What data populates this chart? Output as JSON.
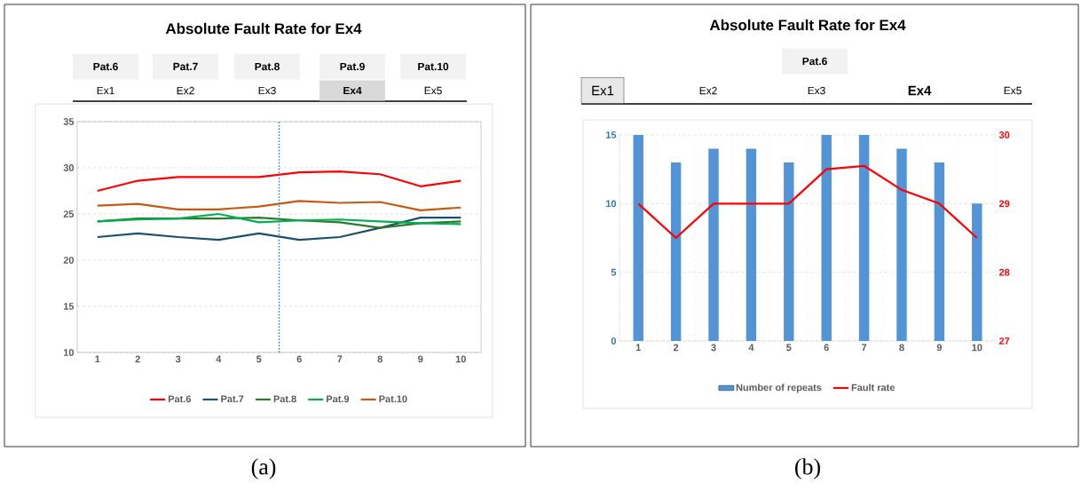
{
  "chart_data": [
    {
      "type": "line",
      "title": "Absolute Fault Rate for Ex4",
      "x": [
        1,
        2,
        3,
        4,
        5,
        6,
        7,
        8,
        9,
        10
      ],
      "xlim": [
        0.5,
        10.5
      ],
      "xticks": [
        1,
        2,
        3,
        4,
        5,
        6,
        7,
        8,
        9,
        10
      ],
      "ylim": [
        10,
        35
      ],
      "yticks": [
        10,
        15,
        20,
        25,
        30,
        35
      ],
      "series": [
        {
          "name": "Pat.6",
          "color": "#ff0000",
          "values": [
            27.5,
            28.6,
            29.0,
            29.0,
            29.0,
            29.5,
            29.6,
            29.3,
            28.0,
            28.6
          ]
        },
        {
          "name": "Pat.7",
          "color": "#1f4e6e",
          "values": [
            22.5,
            22.9,
            22.5,
            22.2,
            22.9,
            22.2,
            22.5,
            23.5,
            24.6,
            24.6
          ]
        },
        {
          "name": "Pat.8",
          "color": "#2a7a2a",
          "values": [
            24.2,
            24.5,
            24.5,
            24.5,
            24.6,
            24.3,
            24.1,
            23.5,
            24.0,
            24.2
          ]
        },
        {
          "name": "Pat.9",
          "color": "#00b050",
          "values": [
            24.2,
            24.4,
            24.5,
            25.0,
            24.1,
            24.3,
            24.4,
            24.2,
            24.0,
            23.9
          ]
        },
        {
          "name": "Pat.10",
          "color": "#c55a11",
          "values": [
            25.9,
            26.1,
            25.5,
            25.5,
            25.8,
            26.4,
            26.2,
            26.3,
            25.4,
            25.7
          ]
        }
      ],
      "ref_lines": [
        {
          "axis": "x",
          "value": 5.5,
          "color": "#2e75b6",
          "line_style": "dotted"
        }
      ],
      "grid": "y",
      "legend": "bottom",
      "marker": "none",
      "line_style": "solid",
      "annotations": [
        "Pat.6",
        "Pat.7",
        "Pat.8",
        "Pat.9",
        "Pat.10",
        "Ex1",
        "Ex2",
        "Ex3",
        "Ex4",
        "Ex5",
        "(a)"
      ]
    },
    {
      "type": "bar",
      "title": "Absolute Fault Rate for Ex4",
      "categories": [
        "1",
        "2",
        "3",
        "4",
        "5",
        "6",
        "7",
        "8",
        "9",
        "10"
      ],
      "ylim": [
        0,
        15
      ],
      "yticks": [
        0,
        5,
        10,
        15
      ],
      "y2lim": [
        27,
        30
      ],
      "y2ticks": [
        27,
        28,
        29,
        30
      ],
      "series": [
        {
          "name": "Number of repeats",
          "color": "#5294d6",
          "values": [
            15,
            13,
            14,
            14,
            13,
            15,
            15,
            14,
            13,
            10
          ]
        },
        {
          "name": "Fault rate",
          "type": "line",
          "axis": "y2",
          "color": "#ff0000",
          "values": [
            29.0,
            28.5,
            29.0,
            29.0,
            29.0,
            29.5,
            29.55,
            29.2,
            29.0,
            28.5
          ]
        }
      ],
      "grid": true,
      "legend": "bottom",
      "annotations": [
        "Pat.6",
        "Ex1",
        "Ex2",
        "Ex3",
        "Ex4",
        "Ex5",
        "(b)"
      ]
    }
  ]
}
